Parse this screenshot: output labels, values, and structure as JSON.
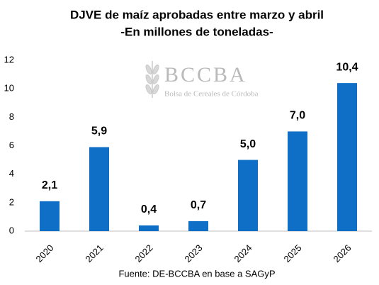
{
  "chart_data": {
    "type": "bar",
    "title": "DJVE de maíz aprobadas entre marzo y abril",
    "subtitle": "-En millones de toneladas-",
    "categories": [
      "2020",
      "2021",
      "2022",
      "2023",
      "2024",
      "2025",
      "2026"
    ],
    "values": [
      2.1,
      5.9,
      0.4,
      0.7,
      5.0,
      7.0,
      10.4
    ],
    "value_labels": [
      "2,1",
      "5,9",
      "0,4",
      "0,7",
      "5,0",
      "7,0",
      "10,4"
    ],
    "color": "#0f6fc6",
    "ylim": [
      0,
      12
    ],
    "yticks": [
      0,
      2,
      4,
      6,
      8,
      10,
      12
    ],
    "grid": false,
    "watermark": {
      "logo": "BCCBA",
      "name": "Bolsa de Cereales de Córdoba"
    },
    "source": "Fuente: DE-BCCBA en base a SAGyP"
  }
}
